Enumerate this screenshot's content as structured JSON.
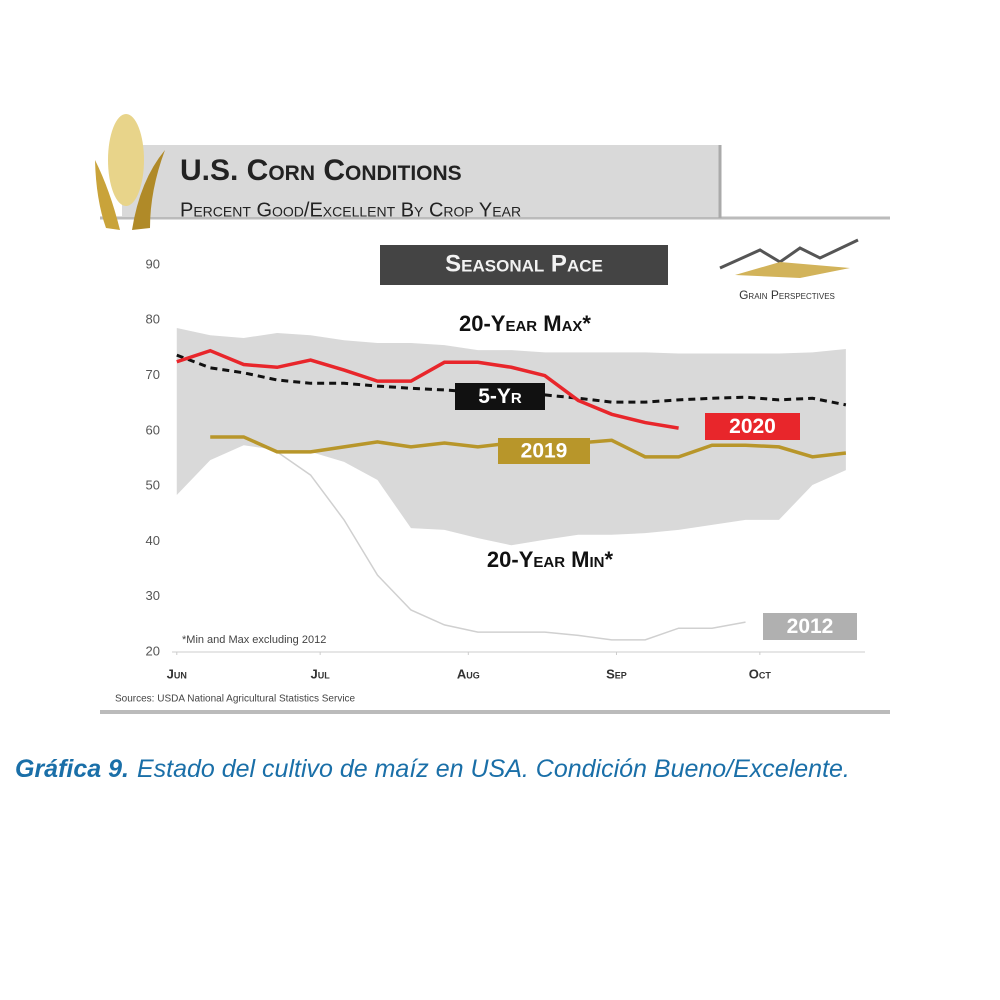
{
  "chart_data": {
    "type": "line",
    "title": "U.S. Corn Conditions",
    "subtitle": "Percent Good/Excellent By Crop Year",
    "banner": "Seasonal Pace",
    "logo_text": "Grain Perspectives",
    "footnote": "*Min and Max excluding 2012",
    "source": "Sources: USDA National Agricultural Statistics Service",
    "x": [
      0,
      7,
      14,
      21,
      28,
      35,
      42,
      49,
      56,
      63,
      70,
      77,
      84,
      91,
      98,
      105,
      112,
      119,
      126,
      133,
      140
    ],
    "xlim": [
      -1,
      144
    ],
    "xticks": [
      {
        "value": 0,
        "label": "Jun"
      },
      {
        "value": 30,
        "label": "Jul"
      },
      {
        "value": 61,
        "label": "Aug"
      },
      {
        "value": 92,
        "label": "Sep"
      },
      {
        "value": 122,
        "label": "Oct"
      }
    ],
    "ylim": [
      20,
      90
    ],
    "yticks": [
      20,
      30,
      40,
      50,
      60,
      70,
      80,
      90
    ],
    "grid": false,
    "band": {
      "upper_name": "20-Year Max*",
      "lower_name": "20-Year Min*",
      "color": "#d9d9d9",
      "upper": [
        78.6,
        77.3,
        76.8,
        77.7,
        77.3,
        76.4,
        75.9,
        75.9,
        75.5,
        74.6,
        74.6,
        74.2,
        74.2,
        74.2,
        74.2,
        74.0,
        74.0,
        74.0,
        74.0,
        74.2,
        74.8
      ],
      "lower": [
        48.4,
        54.7,
        57.4,
        56.5,
        56.2,
        54.4,
        51.1,
        42.4,
        42.1,
        40.6,
        39.3,
        40.3,
        41.2,
        41.2,
        41.5,
        42.1,
        43.0,
        43.9,
        43.9,
        50.2,
        52.9
      ]
    },
    "series": [
      {
        "name": "5-Yr",
        "color": "#111111",
        "style": "dashed",
        "values": [
          73.7,
          71.4,
          70.5,
          69.2,
          68.6,
          68.6,
          68.1,
          67.7,
          67.4,
          67.0,
          66.8,
          66.5,
          65.9,
          65.2,
          65.2,
          65.6,
          65.9,
          66.1,
          65.6,
          65.9,
          64.7
        ]
      },
      {
        "name": "2012",
        "color": "#d0d0d0",
        "style": "solid",
        "values": [
          null,
          58.9,
          58.9,
          56.2,
          52.0,
          43.9,
          33.9,
          27.6,
          24.9,
          23.6,
          23.6,
          23.6,
          23.0,
          22.2,
          22.2,
          24.3,
          24.3,
          25.4,
          null,
          null,
          null
        ]
      },
      {
        "name": "2019",
        "color": "#b8962a",
        "style": "solid",
        "values": [
          null,
          58.9,
          58.9,
          56.2,
          56.2,
          57.1,
          58.0,
          57.1,
          57.8,
          57.1,
          57.8,
          57.4,
          57.8,
          58.3,
          55.3,
          55.3,
          57.4,
          57.4,
          57.1,
          55.3,
          56.0
        ]
      },
      {
        "name": "2020",
        "color": "#e8262b",
        "style": "solid",
        "values": [
          72.5,
          74.5,
          72.0,
          71.5,
          72.8,
          71.0,
          69.0,
          69.0,
          72.4,
          72.4,
          71.5,
          70.0,
          65.5,
          63.0,
          61.5,
          60.5,
          null,
          null,
          null,
          null,
          null
        ]
      }
    ]
  },
  "caption": {
    "label": "Gráfica 9.",
    "text": "Estado del cultivo de maíz en USA. Condición Bueno/Excelente."
  }
}
